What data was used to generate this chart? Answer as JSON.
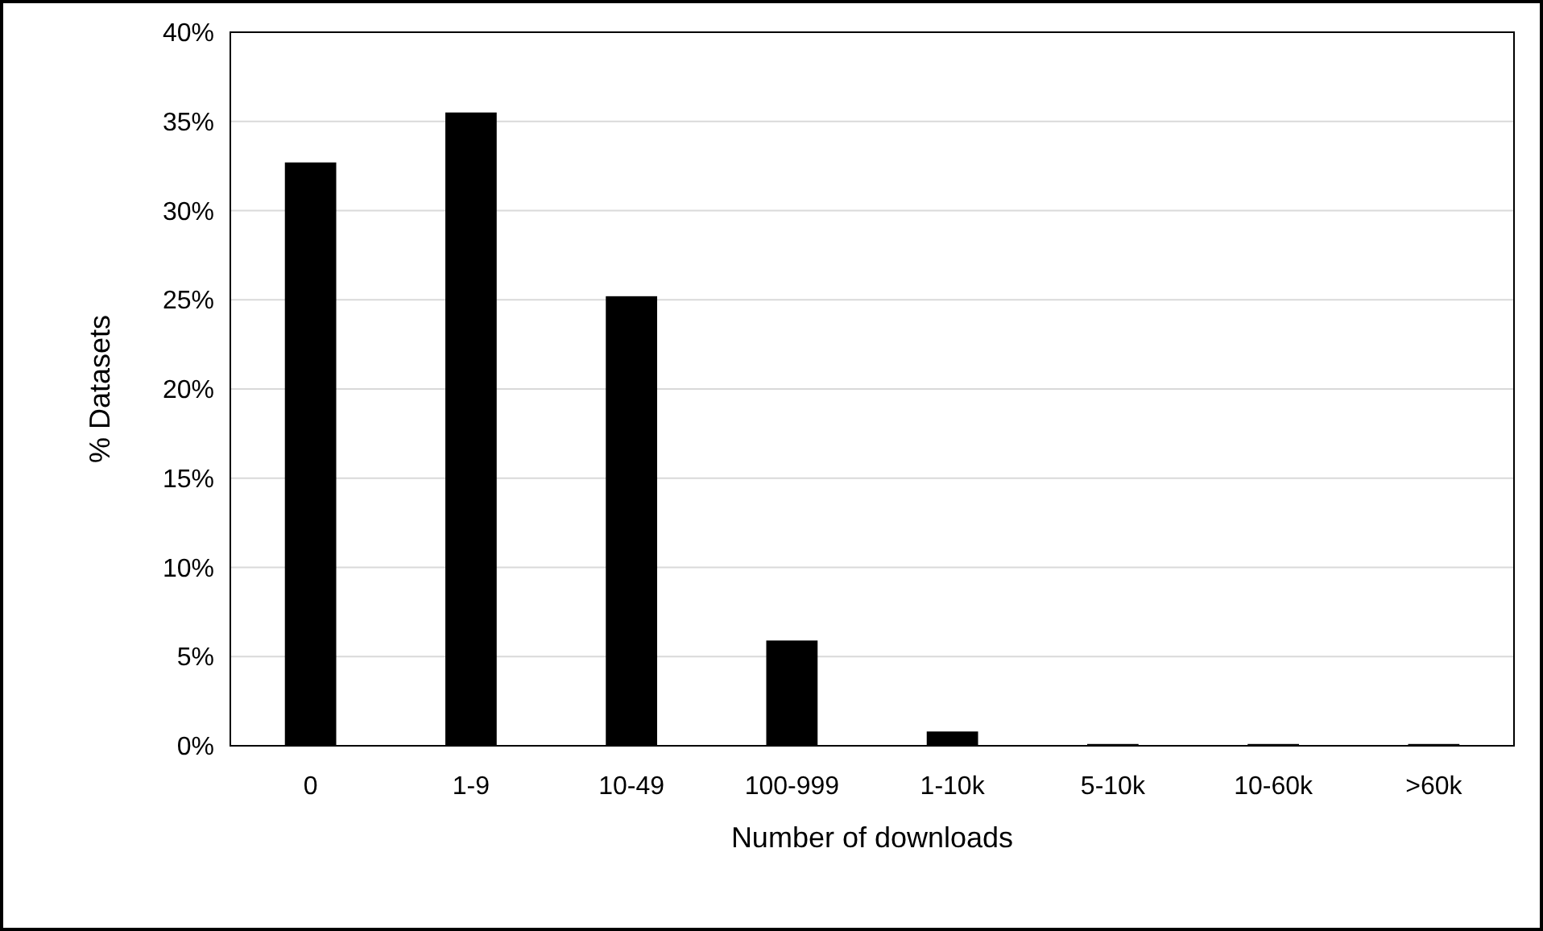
{
  "chart_data": {
    "type": "bar",
    "xlabel": "Number of downloads",
    "ylabel": "% Datasets",
    "categories": [
      "0",
      "1-9",
      "10-49",
      "100-999",
      "1-10k",
      "5-10k",
      "10-60k",
      ">60k"
    ],
    "values": [
      32.7,
      35.5,
      25.2,
      5.9,
      0.8,
      0.1,
      0.1,
      0.1
    ],
    "color": "#000000",
    "ylim": [
      0,
      40
    ],
    "yticks": [
      {
        "value": 0,
        "label": "0%"
      },
      {
        "value": 5,
        "label": "5%"
      },
      {
        "value": 10,
        "label": "10%"
      },
      {
        "value": 15,
        "label": "15%"
      },
      {
        "value": 20,
        "label": "20%"
      },
      {
        "value": 25,
        "label": "25%"
      },
      {
        "value": 30,
        "label": "30%"
      },
      {
        "value": 35,
        "label": "35%"
      },
      {
        "value": 40,
        "label": "40%"
      }
    ],
    "grid": "y"
  }
}
